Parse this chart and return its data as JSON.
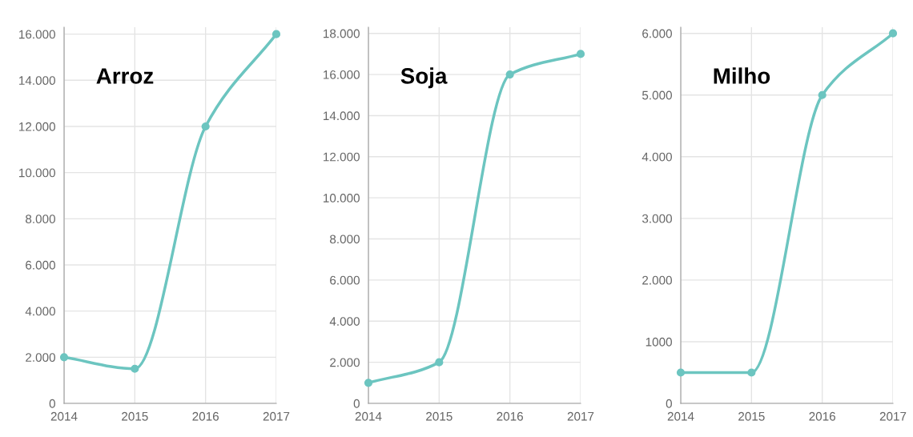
{
  "chart_data": [
    {
      "type": "line",
      "title": "Arroz",
      "x": [
        2014,
        2015,
        2016,
        2017
      ],
      "series": [
        {
          "color": "#6cc5c0",
          "values": [
            2000,
            1500,
            12000,
            16000
          ]
        }
      ],
      "xlim": [
        2014,
        2017
      ],
      "xticks": [
        2014,
        2015,
        2016,
        2017
      ],
      "ylim": [
        0,
        16300
      ],
      "yticks": [
        0,
        {
          "value": 2000,
          "label": "2.000"
        },
        {
          "value": 4000,
          "label": "4.000"
        },
        {
          "value": 6000,
          "label": "6.000"
        },
        {
          "value": 8000,
          "label": "8.000"
        },
        {
          "value": 10000,
          "label": "10.000"
        },
        {
          "value": 12000,
          "label": "12.000"
        },
        {
          "value": 14000,
          "label": "14.000"
        },
        {
          "value": 16000,
          "label": "16.000"
        }
      ],
      "grid": true,
      "marker": "circle",
      "line_style": "solid"
    },
    {
      "type": "line",
      "title": "Soja",
      "x": [
        2014,
        2015,
        2016,
        2017
      ],
      "series": [
        {
          "color": "#6cc5c0",
          "values": [
            1000,
            2000,
            16000,
            17000
          ]
        }
      ],
      "xlim": [
        2014,
        2017
      ],
      "xticks": [
        2014,
        2015,
        2016,
        2017
      ],
      "ylim": [
        0,
        18300
      ],
      "yticks": [
        0,
        {
          "value": 2000,
          "label": "2.000"
        },
        {
          "value": 4000,
          "label": "4.000"
        },
        {
          "value": 6000,
          "label": "6.000"
        },
        {
          "value": 8000,
          "label": "8.000"
        },
        {
          "value": 10000,
          "label": "10.000"
        },
        {
          "value": 12000,
          "label": "12.000"
        },
        {
          "value": 14000,
          "label": "14.000"
        },
        {
          "value": 16000,
          "label": "16.000"
        },
        {
          "value": 18000,
          "label": "18.000"
        }
      ],
      "grid": true,
      "marker": "circle",
      "line_style": "solid"
    },
    {
      "type": "line",
      "title": "Milho",
      "x": [
        2014,
        2015,
        2016,
        2017
      ],
      "series": [
        {
          "color": "#6cc5c0",
          "values": [
            500,
            500,
            5000,
            6000
          ]
        }
      ],
      "xlim": [
        2014,
        2017
      ],
      "xticks": [
        2014,
        2015,
        2016,
        2017
      ],
      "ylim": [
        0,
        6100
      ],
      "yticks": [
        0,
        1000,
        {
          "value": 2000,
          "label": "2.000"
        },
        {
          "value": 3000,
          "label": "3.000"
        },
        {
          "value": 4000,
          "label": "4.000"
        },
        {
          "value": 5000,
          "label": "5.000"
        },
        {
          "value": 6000,
          "label": "6.000"
        }
      ],
      "grid": true,
      "marker": "circle",
      "line_style": "solid"
    }
  ]
}
